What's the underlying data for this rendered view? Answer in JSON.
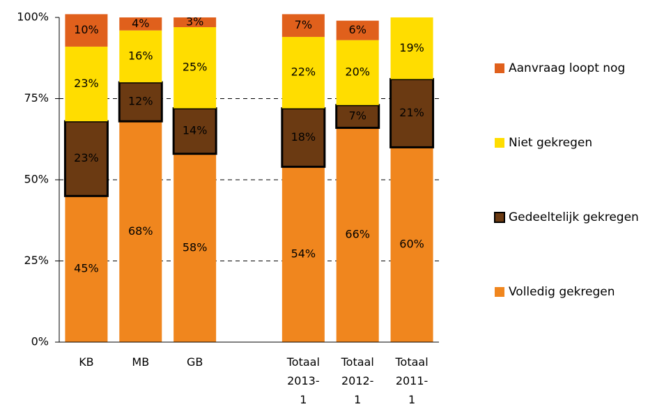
{
  "chart_data": {
    "type": "stacked_bar",
    "categories": [
      "KB",
      "MB",
      "GB",
      null,
      "Totaal\n2013-\n1",
      "Totaal\n2012-\n1",
      "Totaal\n2011-\n1"
    ],
    "series": [
      {
        "name": "Volledig gekregen",
        "color": "#f0861e",
        "values": [
          45,
          68,
          58,
          null,
          54,
          66,
          60
        ],
        "value_labels": [
          "45%",
          "68%",
          "58%",
          null,
          "54%",
          "66%",
          "60%"
        ]
      },
      {
        "name": "Gedeeltelijk gekregen",
        "color": "#6b3a12",
        "values": [
          23,
          12,
          14,
          null,
          18,
          7,
          21
        ],
        "value_labels": [
          "23%",
          "12%",
          "14%",
          null,
          "18%",
          "7%",
          "21%"
        ]
      },
      {
        "name": "Niet gekregen",
        "color": "#ffdd00",
        "values": [
          23,
          16,
          25,
          null,
          22,
          20,
          19
        ],
        "value_labels": [
          "23%",
          "16%",
          "25%",
          null,
          "22%",
          "20%",
          "19%"
        ]
      },
      {
        "name": "Aanvraag loopt nog",
        "color": "#e0601c",
        "values": [
          10,
          4,
          3,
          null,
          7,
          6,
          null
        ],
        "value_labels": [
          "10%",
          "4%",
          "3%",
          null,
          "7%",
          "6%",
          null
        ]
      }
    ],
    "ylim": [
      0,
      100
    ],
    "yticks": [
      {
        "value": 0,
        "label": "0%"
      },
      {
        "value": 25,
        "label": "25%"
      },
      {
        "value": 50,
        "label": "50%"
      },
      {
        "value": 75,
        "label": "75%"
      },
      {
        "value": 100,
        "label": "100%"
      }
    ],
    "grid": true
  }
}
